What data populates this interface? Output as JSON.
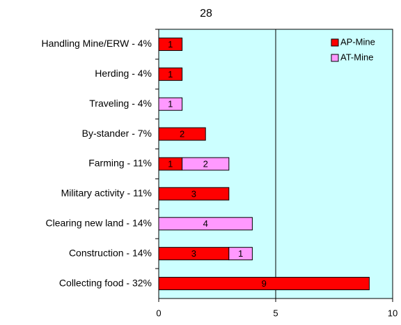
{
  "chart_data": {
    "type": "stacked_barh",
    "title": "28",
    "categories": [
      "Handling Mine/ERW - 4%",
      "Herding - 4%",
      "Traveling - 4%",
      "By-stander - 7%",
      "Farming - 11%",
      "Military activity - 11%",
      "Clearing new land - 14%",
      "Construction - 14%",
      "Collecting food - 32%"
    ],
    "series": [
      {
        "name": "AP-Mine",
        "color": "#ff0000",
        "values": [
          1,
          1,
          0,
          2,
          1,
          3,
          0,
          3,
          9
        ]
      },
      {
        "name": "AT-Mine",
        "color": "#ff99ff",
        "values": [
          0,
          0,
          1,
          0,
          2,
          0,
          4,
          1,
          0
        ]
      }
    ],
    "xlim": [
      0,
      10
    ],
    "xticks": [
      0,
      5,
      10
    ],
    "grid": true,
    "legend": "upper right",
    "background": "#ccffff"
  }
}
